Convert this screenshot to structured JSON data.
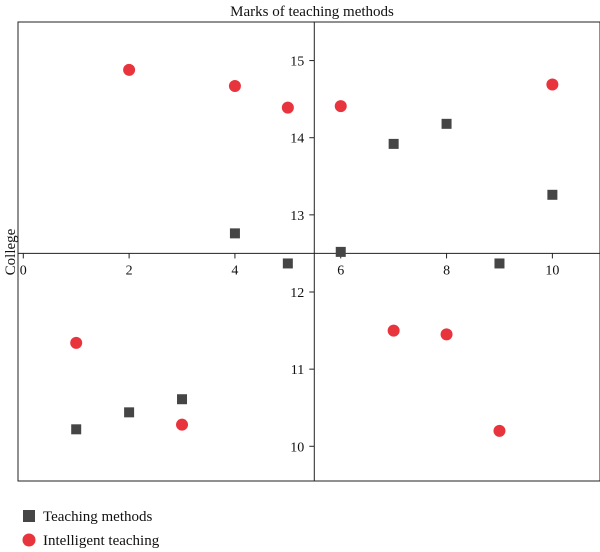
{
  "chart_data": {
    "type": "scatter",
    "title": "Marks of teaching methods",
    "xlabel": "",
    "ylabel": "College",
    "xlim": [
      -0.1,
      10.9
    ],
    "ylim": [
      9.55,
      15.5
    ],
    "axis_crossing": {
      "x_axis_at_y": 12.5,
      "y_axis_at_x": 5.5
    },
    "x_ticks": [
      0,
      2,
      4,
      6,
      8,
      10
    ],
    "x_tick_labels": [
      "0",
      "2",
      "4",
      "6",
      "8",
      "10"
    ],
    "y_ticks": [
      10,
      11,
      12,
      13,
      14,
      15
    ],
    "y_tick_labels": [
      "10",
      "11",
      "12",
      "13",
      "14",
      "15"
    ],
    "grid": false,
    "legend_position": "bottom-left",
    "series": [
      {
        "name": "Teaching methods",
        "marker": "square",
        "color": "#454545",
        "x": [
          1,
          2,
          3,
          4,
          5,
          6,
          7,
          8,
          9,
          10
        ],
        "y": [
          10.22,
          10.44,
          10.61,
          12.76,
          12.37,
          12.52,
          13.92,
          14.18,
          12.37,
          13.26
        ]
      },
      {
        "name": "Intelligent teaching",
        "marker": "circle",
        "color": "#e8343c",
        "x": [
          1,
          2,
          3,
          4,
          5,
          6,
          7,
          8,
          9,
          10
        ],
        "y": [
          11.34,
          14.88,
          10.28,
          14.67,
          14.39,
          14.41,
          11.5,
          11.45,
          10.2,
          14.69
        ]
      }
    ]
  }
}
